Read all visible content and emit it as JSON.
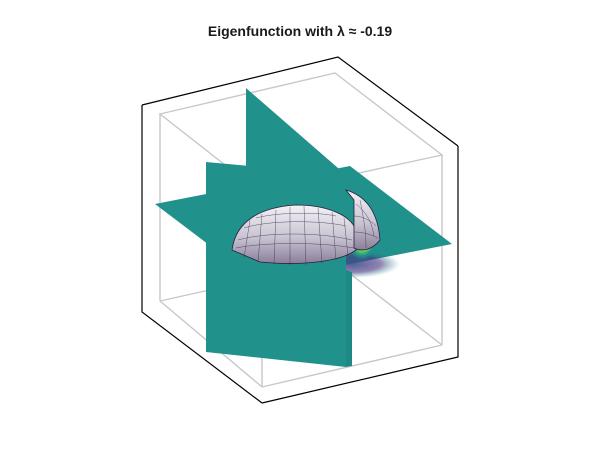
{
  "figure": {
    "title": "Eigenfunction with λ ≈ -0.19"
  },
  "colors": {
    "slice_fill": "#21918c",
    "surface_dark": "#3b0f47",
    "surface_mid": "#8a7f9a",
    "surface_light": "#ecebf0",
    "halo_yellow": "#fde725",
    "halo_green": "#5ec962",
    "halo_blue": "#3b528b",
    "back_box_edge": "#c8c8c8",
    "front_box_edge": "#000000"
  },
  "scene": {
    "type": "3d-volume-slices",
    "slices": [
      "x-slice",
      "y-slice",
      "z-slice"
    ],
    "isosurface": "dome"
  }
}
